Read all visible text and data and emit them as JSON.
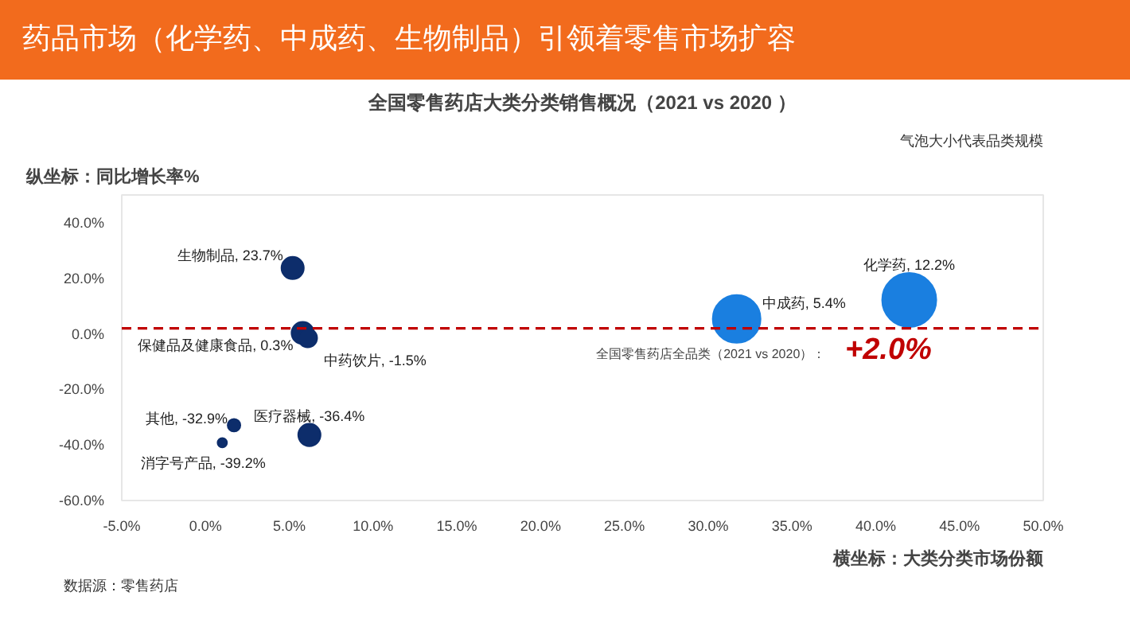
{
  "chart_data": {
    "type": "bubble",
    "title": "药品市场（化学药、中成药、生物制品）引领着零售市场扩容",
    "subtitle": "全国零售药店大类分类销售概况（2021 vs 2020 ）",
    "xlabel": "横坐标：大类分类市场份额",
    "ylabel": "纵坐标：同比增长率%",
    "x": [
      5.2,
      5.8,
      6.1,
      6.2,
      1.7,
      1.0,
      31.7,
      42.0
    ],
    "values": [
      23.7,
      0.3,
      -1.5,
      -36.4,
      -32.9,
      -39.2,
      5.4,
      12.2
    ],
    "sizes": [
      0.17,
      0.17,
      0.12,
      0.17,
      0.055,
      0.03,
      0.78,
      1
    ],
    "colors": [
      "#0d2d6b",
      "#0d2d6b",
      "#0d2d6b",
      "#0d2d6b",
      "#0d2d6b",
      "#0d2d6b",
      "#1a7fe0",
      "#1a7fe0"
    ],
    "value_labels": [
      "生物制品, 23.7%",
      "保健品及健康食品, 0.3%",
      "中药饮片, -1.5%",
      "医疗器械, -36.4%",
      "其他, -32.9%",
      "消字号产品, -39.2%",
      "中成药, 5.4%",
      "化学药, 12.2%"
    ],
    "xlim": [
      -5,
      50
    ],
    "ylim": [
      -60,
      50
    ],
    "xticks": [
      {
        "value": -5,
        "label": "-5.0%"
      },
      {
        "value": 0,
        "label": "0.0%"
      },
      {
        "value": 5,
        "label": "5.0%"
      },
      {
        "value": 10,
        "label": "10.0%"
      },
      {
        "value": 15,
        "label": "15.0%"
      },
      {
        "value": 20,
        "label": "20.0%"
      },
      {
        "value": 25,
        "label": "25.0%"
      },
      {
        "value": 30,
        "label": "30.0%"
      },
      {
        "value": 35,
        "label": "35.0%"
      },
      {
        "value": 40,
        "label": "40.0%"
      },
      {
        "value": 45,
        "label": "45.0%"
      },
      {
        "value": 50,
        "label": "50.0%"
      }
    ],
    "yticks": [
      {
        "value": -60,
        "label": "-60.0%"
      },
      {
        "value": -40,
        "label": "-40.0%"
      },
      {
        "value": -20,
        "label": "-20.0%"
      },
      {
        "value": 0,
        "label": "0.0%"
      },
      {
        "value": 20,
        "label": "20.0%"
      },
      {
        "value": 40,
        "label": "40.0%"
      }
    ],
    "ref_lines": [
      {
        "axis": "y",
        "value": 2.0,
        "label": "+2.0%",
        "color": "#c00000",
        "line_style": "dashed"
      }
    ],
    "annotations": [
      {
        "text": "全国零售药店全品类（2021 vs 2020）：",
        "x": 37,
        "y": 2.0
      },
      "气泡大小代表品类规模",
      "数据源：零售药店"
    ],
    "grid": false
  }
}
